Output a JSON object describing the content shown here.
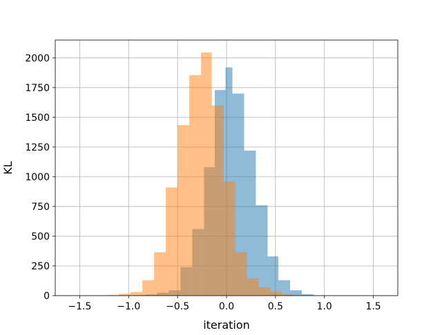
{
  "chart_data": {
    "type": "bar",
    "title": "",
    "xlabel": "iteration",
    "ylabel": "KL",
    "xlim": [
      -1.75,
      1.75
    ],
    "ylim": [
      0,
      2150
    ],
    "grid": true,
    "legend": "none",
    "x_ticks": [
      -1.5,
      -1.0,
      -0.5,
      0.0,
      0.5,
      1.0,
      1.5
    ],
    "x_tick_labels": [
      "−1.5",
      "−1.0",
      "−0.5",
      "0.0",
      "0.5",
      "1.0",
      "1.5"
    ],
    "y_ticks": [
      0,
      250,
      500,
      750,
      1000,
      1250,
      1500,
      1750,
      2000
    ],
    "y_tick_labels": [
      "0",
      "250",
      "500",
      "750",
      "1000",
      "1250",
      "1500",
      "1750",
      "2000"
    ],
    "series": [
      {
        "color": "#1f77b4",
        "opacity": 0.5,
        "bins": [
          {
            "x0": -0.95,
            "x1": -0.83,
            "y": 5
          },
          {
            "x0": -0.83,
            "x1": -0.71,
            "y": 10
          },
          {
            "x0": -0.71,
            "x1": -0.59,
            "y": 25
          },
          {
            "x0": -0.59,
            "x1": -0.47,
            "y": 45
          },
          {
            "x0": -0.47,
            "x1": -0.35,
            "y": 240
          },
          {
            "x0": -0.35,
            "x1": -0.23,
            "y": 560
          },
          {
            "x0": -0.23,
            "x1": -0.12,
            "y": 1080
          },
          {
            "x0": -0.12,
            "x1": -0.01,
            "y": 1730
          },
          {
            "x0": -0.01,
            "x1": 0.06,
            "y": 1920
          },
          {
            "x0": 0.06,
            "x1": 0.18,
            "y": 1700
          },
          {
            "x0": 0.18,
            "x1": 0.3,
            "y": 1220
          },
          {
            "x0": 0.3,
            "x1": 0.42,
            "y": 760
          },
          {
            "x0": 0.42,
            "x1": 0.53,
            "y": 330
          },
          {
            "x0": 0.53,
            "x1": 0.65,
            "y": 130
          },
          {
            "x0": 0.65,
            "x1": 0.77,
            "y": 45
          },
          {
            "x0": 0.77,
            "x1": 0.89,
            "y": 12
          },
          {
            "x0": 0.89,
            "x1": 1.0,
            "y": 3
          }
        ]
      },
      {
        "color": "#ff7f0e",
        "opacity": 0.5,
        "bins": [
          {
            "x0": -1.22,
            "x1": -1.1,
            "y": 5
          },
          {
            "x0": -1.1,
            "x1": -0.98,
            "y": 15
          },
          {
            "x0": -0.98,
            "x1": -0.86,
            "y": 30
          },
          {
            "x0": -0.86,
            "x1": -0.74,
            "y": 130
          },
          {
            "x0": -0.74,
            "x1": -0.62,
            "y": 365
          },
          {
            "x0": -0.62,
            "x1": -0.5,
            "y": 910
          },
          {
            "x0": -0.5,
            "x1": -0.38,
            "y": 1435
          },
          {
            "x0": -0.38,
            "x1": -0.26,
            "y": 1855
          },
          {
            "x0": -0.26,
            "x1": -0.15,
            "y": 2045
          },
          {
            "x0": -0.15,
            "x1": -0.03,
            "y": 1600
          },
          {
            "x0": -0.03,
            "x1": 0.09,
            "y": 960
          },
          {
            "x0": 0.09,
            "x1": 0.21,
            "y": 365
          },
          {
            "x0": 0.21,
            "x1": 0.33,
            "y": 145
          },
          {
            "x0": 0.33,
            "x1": 0.45,
            "y": 70
          },
          {
            "x0": 0.45,
            "x1": 0.57,
            "y": 35
          },
          {
            "x0": 0.57,
            "x1": 0.69,
            "y": 10
          }
        ]
      }
    ]
  }
}
